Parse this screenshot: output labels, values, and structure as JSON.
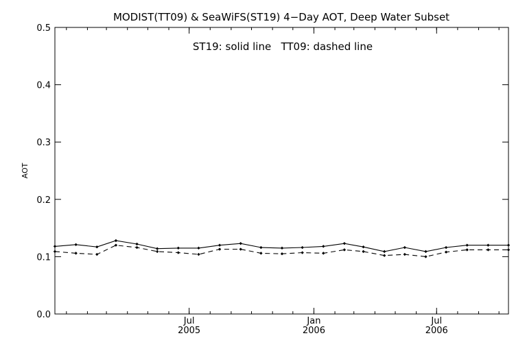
{
  "chart_data": {
    "type": "line",
    "title": "MODIST(TT09) & SeaWiFS(ST19) 4−Day AOT, Deep Water Subset",
    "annotation": "ST19: solid line   TT09: dashed line",
    "ylabel": "AOT",
    "xlabel": "",
    "ylim": [
      0.0,
      0.5
    ],
    "xlim": [
      "2004-12-15",
      "2006-10-15"
    ],
    "yticks": [
      {
        "value": 0.0,
        "label": "0.0"
      },
      {
        "value": 0.1,
        "label": "0.1"
      },
      {
        "value": 0.2,
        "label": "0.2"
      },
      {
        "value": 0.3,
        "label": "0.3"
      },
      {
        "value": 0.4,
        "label": "0.4"
      },
      {
        "value": 0.5,
        "label": "0.5"
      }
    ],
    "xticks": [
      {
        "date": "2005-07-01",
        "label": "Jul",
        "year": "2005"
      },
      {
        "date": "2006-01-01",
        "label": "Jan",
        "year": "2006"
      },
      {
        "date": "2006-07-01",
        "label": "Jul",
        "year": "2006"
      }
    ],
    "x": [
      "2004-12-15",
      "2005-01-15",
      "2005-02-15",
      "2005-03-15",
      "2005-04-15",
      "2005-05-15",
      "2005-06-15",
      "2005-07-15",
      "2005-08-15",
      "2005-09-15",
      "2005-10-15",
      "2005-11-15",
      "2005-12-15",
      "2006-01-15",
      "2006-02-15",
      "2006-03-15",
      "2006-04-15",
      "2006-05-15",
      "2006-06-15",
      "2006-07-15",
      "2006-08-15",
      "2006-09-15",
      "2006-10-15"
    ],
    "series": [
      {
        "name": "ST19",
        "style": "solid",
        "color": "#000000",
        "values": [
          0.118,
          0.121,
          0.117,
          0.128,
          0.122,
          0.114,
          0.115,
          0.115,
          0.12,
          0.123,
          0.116,
          0.115,
          0.116,
          0.118,
          0.123,
          0.117,
          0.109,
          0.116,
          0.109,
          0.116,
          0.12,
          0.12,
          0.12
        ]
      },
      {
        "name": "TT09",
        "style": "dashed",
        "color": "#000000",
        "values": [
          0.109,
          0.106,
          0.104,
          0.12,
          0.116,
          0.109,
          0.107,
          0.104,
          0.113,
          0.113,
          0.106,
          0.105,
          0.107,
          0.106,
          0.112,
          0.109,
          0.102,
          0.104,
          0.1,
          0.108,
          0.112,
          0.112,
          0.112
        ]
      }
    ]
  }
}
